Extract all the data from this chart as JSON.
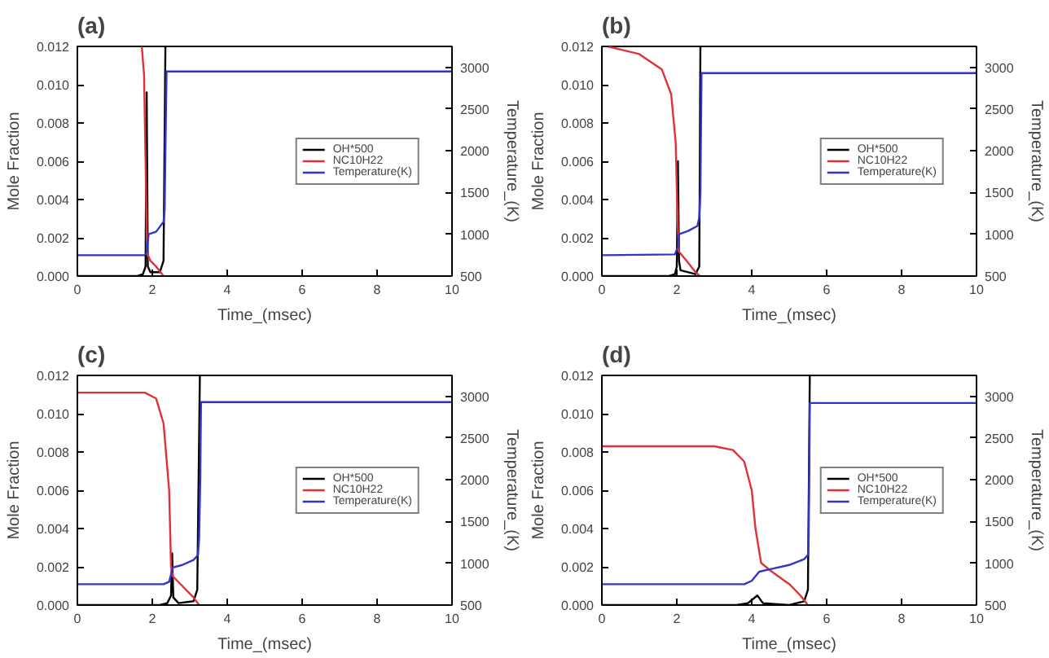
{
  "chart_data": [
    {
      "type": "line",
      "title": "(a)",
      "xlabel": "Time_(msec)",
      "ylabel": "Mole Fraction",
      "y2label": "Temperature_(K)",
      "xlim": [
        0,
        10
      ],
      "xticks": [
        0,
        2,
        4,
        6,
        8,
        10
      ],
      "ylim": [
        0,
        0.012
      ],
      "yticks": [
        {
          "value": 0,
          "label": "0.000"
        },
        {
          "value": 0.002,
          "label": "0.002"
        },
        {
          "value": 0.004,
          "label": "0.004"
        },
        {
          "value": 0.006,
          "label": "0.006"
        },
        {
          "value": 0.008,
          "label": "0.008"
        },
        {
          "value": 0.01,
          "label": "0.010"
        },
        {
          "value": 0.012,
          "label": "0.012"
        }
      ],
      "y2lim": [
        500,
        3250
      ],
      "y2ticks": [
        500,
        1000,
        1500,
        2000,
        2500,
        3000
      ],
      "grid": false,
      "legend": "right",
      "line_style": "solid",
      "marker": "none",
      "series": [
        {
          "name": "OH*500",
          "color": "#000000",
          "x": [
            0,
            1.6,
            1.75,
            1.82,
            1.85,
            1.88,
            1.95,
            2.2,
            2.3,
            2.35
          ],
          "values": [
            0,
            0,
            0.0001,
            0.0005,
            0.0096,
            0.0005,
            0.0002,
            0.0002,
            0.0008,
            0.012
          ]
        },
        {
          "name": "NC10H22",
          "color": "#e0303a",
          "x": [
            1.72,
            1.78,
            1.82,
            1.86,
            1.95,
            2.1,
            2.3
          ],
          "values": [
            0.012,
            0.0105,
            0.006,
            0.0012,
            0.0008,
            0.0005,
            0
          ]
        },
        {
          "name": "Temperature(K)",
          "color": "#3333cc",
          "axis": "y2",
          "x": [
            0,
            1.8,
            1.85,
            1.9,
            2.1,
            2.3,
            2.33,
            2.35,
            2.38,
            10
          ],
          "values": [
            750,
            750,
            780,
            1000,
            1030,
            1150,
            1300,
            2000,
            2950,
            2950
          ]
        }
      ]
    },
    {
      "type": "line",
      "title": "(b)",
      "xlabel": "Time_(msec)",
      "ylabel": "Mole Fraction",
      "y2label": "Temperature_(K)",
      "xlim": [
        0,
        10
      ],
      "xticks": [
        0,
        2,
        4,
        6,
        8,
        10
      ],
      "ylim": [
        0,
        0.012
      ],
      "yticks": [
        {
          "value": 0,
          "label": "0.000"
        },
        {
          "value": 0.002,
          "label": "0.002"
        },
        {
          "value": 0.004,
          "label": "0.004"
        },
        {
          "value": 0.006,
          "label": "0.006"
        },
        {
          "value": 0.008,
          "label": "0.008"
        },
        {
          "value": 0.01,
          "label": "0.010"
        },
        {
          "value": 0.012,
          "label": "0.012"
        }
      ],
      "y2lim": [
        500,
        3250
      ],
      "y2ticks": [
        500,
        1000,
        1500,
        2000,
        2500,
        3000
      ],
      "grid": false,
      "legend": "right",
      "line_style": "solid",
      "marker": "none",
      "series": [
        {
          "name": "OH*500",
          "color": "#000000",
          "x": [
            0,
            1.8,
            1.95,
            2.0,
            2.03,
            2.06,
            2.1,
            2.5,
            2.6,
            2.63
          ],
          "values": [
            0,
            0,
            0.0001,
            0.0005,
            0.006,
            0.0008,
            0.0003,
            0.0001,
            0.0005,
            0.012
          ]
        },
        {
          "name": "NC10H22",
          "color": "#e0303a",
          "x": [
            0.15,
            1.0,
            1.6,
            1.85,
            1.97,
            2.02,
            2.05,
            2.3,
            2.5,
            2.62
          ],
          "values": [
            0.012,
            0.0116,
            0.0108,
            0.0095,
            0.007,
            0.003,
            0.0013,
            0.0007,
            0.0002,
            0
          ]
        },
        {
          "name": "Temperature(K)",
          "color": "#3333cc",
          "axis": "y2",
          "x": [
            0,
            1.95,
            2.03,
            2.06,
            2.3,
            2.55,
            2.6,
            2.63,
            2.66,
            10
          ],
          "values": [
            750,
            760,
            850,
            1000,
            1040,
            1100,
            1200,
            1500,
            2930,
            2930
          ]
        }
      ]
    },
    {
      "type": "line",
      "title": "(c)",
      "xlabel": "Time_(msec)",
      "ylabel": "Mole Fraction",
      "y2label": "Temperature_(K)",
      "xlim": [
        0,
        10
      ],
      "xticks": [
        0,
        2,
        4,
        6,
        8,
        10
      ],
      "ylim": [
        0,
        0.012
      ],
      "yticks": [
        {
          "value": 0,
          "label": "0.000"
        },
        {
          "value": 0.002,
          "label": "0.002"
        },
        {
          "value": 0.004,
          "label": "0.004"
        },
        {
          "value": 0.006,
          "label": "0.006"
        },
        {
          "value": 0.008,
          "label": "0.008"
        },
        {
          "value": 0.01,
          "label": "0.010"
        },
        {
          "value": 0.012,
          "label": "0.012"
        }
      ],
      "y2lim": [
        500,
        3250
      ],
      "y2ticks": [
        500,
        1000,
        1500,
        2000,
        2500,
        3000
      ],
      "grid": false,
      "legend": "right",
      "line_style": "solid",
      "marker": "none",
      "series": [
        {
          "name": "OH*500",
          "color": "#000000",
          "x": [
            0,
            2.2,
            2.4,
            2.5,
            2.53,
            2.56,
            2.7,
            3.1,
            3.2,
            3.27
          ],
          "values": [
            0,
            0,
            0.0001,
            0.0005,
            0.0027,
            0.0004,
            0.0001,
            0.0002,
            0.0008,
            0.012
          ]
        },
        {
          "name": "NC10H22",
          "color": "#e0303a",
          "x": [
            0,
            1.8,
            2.1,
            2.3,
            2.45,
            2.5,
            2.55,
            2.8,
            3.1,
            3.25
          ],
          "values": [
            0.0111,
            0.0111,
            0.0108,
            0.0095,
            0.006,
            0.002,
            0.0015,
            0.001,
            0.0004,
            0
          ]
        },
        {
          "name": "Temperature(K)",
          "color": "#3333cc",
          "axis": "y2",
          "x": [
            0,
            2.3,
            2.45,
            2.55,
            2.8,
            3.1,
            3.22,
            3.25,
            3.28,
            3.3,
            10
          ],
          "values": [
            750,
            750,
            780,
            950,
            980,
            1040,
            1100,
            1300,
            2000,
            2930,
            2930
          ]
        }
      ]
    },
    {
      "type": "line",
      "title": "(d)",
      "xlabel": "Time_(msec)",
      "ylabel": "Mole Fraction",
      "y2label": "Temperature_(K)",
      "xlim": [
        0,
        10
      ],
      "xticks": [
        0,
        2,
        4,
        6,
        8,
        10
      ],
      "ylim": [
        0,
        0.012
      ],
      "yticks": [
        {
          "value": 0,
          "label": "0.000"
        },
        {
          "value": 0.002,
          "label": "0.002"
        },
        {
          "value": 0.004,
          "label": "0.004"
        },
        {
          "value": 0.006,
          "label": "0.006"
        },
        {
          "value": 0.008,
          "label": "0.008"
        },
        {
          "value": 0.01,
          "label": "0.010"
        },
        {
          "value": 0.012,
          "label": "0.012"
        }
      ],
      "y2lim": [
        500,
        3250
      ],
      "y2ticks": [
        500,
        1000,
        1500,
        2000,
        2500,
        3000
      ],
      "grid": false,
      "legend": "right",
      "line_style": "solid",
      "marker": "none",
      "series": [
        {
          "name": "OH*500",
          "color": "#000000",
          "x": [
            0,
            3.6,
            3.9,
            4.15,
            4.3,
            5.0,
            5.4,
            5.5,
            5.55
          ],
          "values": [
            0,
            0,
            0.0001,
            0.0005,
            0.0001,
            0,
            0.0002,
            0.0008,
            0.012
          ]
        },
        {
          "name": "NC10H22",
          "color": "#e0303a",
          "x": [
            0,
            3.0,
            3.5,
            3.8,
            4.0,
            4.1,
            4.25,
            4.5,
            5.0,
            5.3,
            5.5
          ],
          "values": [
            0.0083,
            0.0083,
            0.0081,
            0.0075,
            0.006,
            0.004,
            0.0022,
            0.0018,
            0.0011,
            0.0005,
            0
          ]
        },
        {
          "name": "Temperature(K)",
          "color": "#3333cc",
          "axis": "y2",
          "x": [
            0,
            3.8,
            4.0,
            4.2,
            4.5,
            5.0,
            5.4,
            5.5,
            5.52,
            5.55,
            10
          ],
          "values": [
            750,
            750,
            790,
            900,
            930,
            980,
            1050,
            1100,
            1300,
            2920,
            2920
          ]
        }
      ]
    }
  ]
}
